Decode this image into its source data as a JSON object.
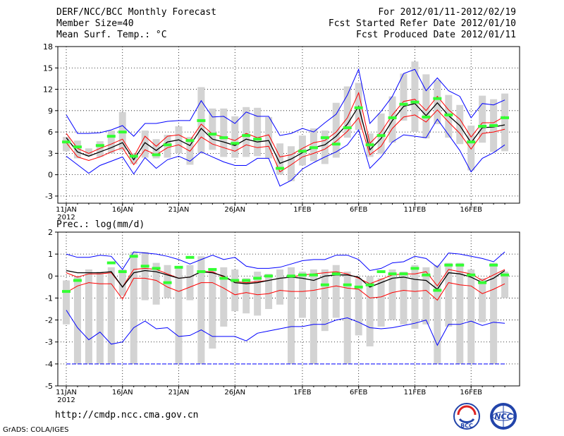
{
  "header": {
    "title": "DERF/NCC/BCC Monthly Forecast",
    "member_size": "Member Size=40",
    "variable": "Mean Surf. Temp.: °C",
    "forecast_period": "For 2012/01/11-2012/02/19",
    "fcst_started": "Fcst Started Refer Date 2012/01/10",
    "fcst_produced": "Fcst Produced Date 2012/01/11"
  },
  "footer": {
    "url": "http://cmdp.ncc.cma.gov.cn",
    "credit": "GrADS: COLA/IGES",
    "logo_left": "BCC",
    "logo_right": "NCC"
  },
  "colors": {
    "envelope": "#0000ff",
    "spread": "#ff0000",
    "mean": "#000000",
    "box": "#d3d3d3",
    "obs": "#33ff33"
  },
  "chart_data": [
    {
      "type": "line",
      "title": "Mean Surf. Temp.: °C",
      "xlabel": "",
      "ylabel": "",
      "ylim": [
        -4,
        18
      ],
      "yticks": [
        -3,
        0,
        3,
        6,
        9,
        12,
        15,
        18
      ],
      "grid": true,
      "x_ticks": [
        {
          "day": 0,
          "label": "11JAN",
          "sub": "2012"
        },
        {
          "day": 5,
          "label": "16JAN"
        },
        {
          "day": 10,
          "label": "21JAN"
        },
        {
          "day": 15,
          "label": "26JAN"
        },
        {
          "day": 21,
          "label": "1FEB"
        },
        {
          "day": 26,
          "label": "6FEB"
        },
        {
          "day": 31,
          "label": "11FEB"
        },
        {
          "day": 36,
          "label": "16FEB"
        }
      ],
      "days": 40,
      "series": [
        {
          "name": "max",
          "values": [
            8.4,
            5.8,
            5.8,
            5.9,
            6.3,
            6.9,
            5.4,
            7.2,
            7.2,
            7.5,
            7.6,
            7.6,
            10.4,
            8.1,
            8.2,
            7.2,
            8.8,
            8.2,
            8.2,
            5.5,
            5.8,
            6.5,
            6.0,
            7.3,
            8.5,
            11.2,
            14.8,
            7.2,
            8.9,
            11.0,
            14.2,
            14.8,
            11.8,
            13.6,
            11.8,
            11.0,
            8.0,
            10.0,
            9.8,
            10.5
          ]
        },
        {
          "name": "upper",
          "values": [
            5.8,
            3.7,
            3.0,
            3.7,
            4.3,
            5.0,
            2.5,
            5.4,
            4.0,
            5.4,
            5.6,
            4.8,
            7.1,
            5.7,
            5.3,
            4.8,
            5.8,
            5.2,
            5.6,
            2.5,
            2.8,
            3.7,
            4.5,
            4.8,
            6.0,
            8.0,
            11.5,
            4.4,
            6.0,
            8.4,
            10.3,
            10.6,
            9.0,
            11.0,
            9.1,
            7.8,
            5.3,
            7.3,
            7.3,
            8.2
          ]
        },
        {
          "name": "mean",
          "values": [
            5.2,
            3.2,
            2.6,
            3.2,
            3.8,
            4.5,
            2.1,
            4.5,
            3.4,
            4.6,
            4.9,
            4.1,
            6.5,
            5.0,
            4.6,
            4.1,
            5.0,
            4.6,
            4.8,
            1.6,
            2.2,
            3.1,
            3.8,
            4.2,
            5.4,
            7.1,
            9.6,
            3.5,
            5.1,
            7.6,
            9.6,
            10.0,
            8.3,
            10.1,
            8.3,
            6.9,
            4.5,
            6.6,
            6.7,
            7.0
          ]
        },
        {
          "name": "lower",
          "values": [
            4.5,
            2.5,
            2.0,
            2.5,
            3.2,
            3.8,
            1.4,
            3.5,
            2.8,
            3.8,
            4.2,
            3.3,
            5.3,
            4.3,
            3.8,
            3.3,
            4.2,
            3.8,
            4.0,
            0.4,
            1.4,
            2.5,
            3.0,
            3.6,
            4.7,
            6.1,
            8.0,
            2.8,
            4.0,
            6.5,
            8.1,
            8.4,
            7.4,
            9.1,
            7.4,
            5.8,
            3.6,
            5.8,
            6.0,
            6.4
          ]
        },
        {
          "name": "min",
          "values": [
            2.6,
            1.4,
            0.2,
            1.3,
            1.9,
            2.5,
            0.1,
            2.4,
            0.9,
            2.1,
            2.6,
            1.9,
            3.2,
            2.5,
            1.8,
            1.3,
            1.3,
            2.3,
            2.3,
            -1.6,
            -0.8,
            0.8,
            1.7,
            2.5,
            3.2,
            4.2,
            6.3,
            0.9,
            2.5,
            4.6,
            5.6,
            5.4,
            5.2,
            7.8,
            5.6,
            3.4,
            0.4,
            2.3,
            3.1,
            4.2
          ]
        }
      ],
      "boxes": [
        [
          3.3,
          5.3
        ],
        [
          2.3,
          4.8
        ],
        [
          2.6,
          3.7
        ],
        [
          2.5,
          4.7
        ],
        [
          3.0,
          6.2
        ],
        [
          3.4,
          8.8
        ],
        [
          1.5,
          3.0
        ],
        [
          2.4,
          6.2
        ],
        [
          2.3,
          5.0
        ],
        [
          2.4,
          5.6
        ],
        [
          3.0,
          6.8
        ],
        [
          1.4,
          5.3
        ],
        [
          3.0,
          12.3
        ],
        [
          3.5,
          9.3
        ],
        [
          2.5,
          9.3
        ],
        [
          2.4,
          8.2
        ],
        [
          2.5,
          9.5
        ],
        [
          2.6,
          9.4
        ],
        [
          2.3,
          8.1
        ],
        [
          0.0,
          4.4
        ],
        [
          -0.9,
          4.0
        ],
        [
          1.3,
          5.5
        ],
        [
          1.9,
          6.5
        ],
        [
          1.5,
          6.2
        ],
        [
          2.4,
          10.1
        ],
        [
          5.2,
          12.4
        ],
        [
          6.3,
          12.9
        ],
        [
          2.5,
          5.8
        ],
        [
          2.9,
          8.6
        ],
        [
          4.5,
          11.0
        ],
        [
          7.6,
          14.2
        ],
        [
          6.0,
          15.9
        ],
        [
          5.1,
          14.1
        ],
        [
          7.1,
          13.3
        ],
        [
          5.2,
          11.2
        ],
        [
          4.3,
          9.8
        ],
        [
          0.6,
          6.9
        ],
        [
          4.5,
          11.1
        ],
        [
          3.2,
          10.6
        ],
        [
          3.3,
          11.4
        ]
      ],
      "observed": [
        4.6,
        3.9,
        null,
        4.1,
        5.4,
        6.0,
        2.6,
        null,
        2.8,
        4.2,
        null,
        4.8,
        7.6,
        5.7,
        5.2,
        4.4,
        5.5,
        5.0,
        null,
        0.9,
        null,
        3.3,
        3.8,
        5.2,
        4.3,
        6.6,
        9.4,
        4.2,
        5.5,
        8.0,
        9.9,
        10.2,
        8.1,
        10.7,
        8.4,
        null,
        4.6,
        6.8,
        6.9,
        8.0
      ]
    },
    {
      "type": "line",
      "title": "Prec.: log(mm/d)",
      "xlabel": "",
      "ylabel": "",
      "ylim": [
        -5,
        2
      ],
      "yticks": [
        -5,
        -4,
        -3,
        -2,
        -1,
        0,
        1,
        2
      ],
      "grid": true,
      "x_ticks": [
        {
          "day": 0,
          "label": "11JAN",
          "sub": "2012"
        },
        {
          "day": 5,
          "label": "16JAN"
        },
        {
          "day": 10,
          "label": "21JAN"
        },
        {
          "day": 15,
          "label": "26JAN"
        },
        {
          "day": 21,
          "label": "1FEB"
        },
        {
          "day": 26,
          "label": "6FEB"
        },
        {
          "day": 31,
          "label": "11FEB"
        },
        {
          "day": 36,
          "label": "16FEB"
        }
      ],
      "days": 40,
      "series": [
        {
          "name": "max",
          "values": [
            1.0,
            0.85,
            0.85,
            0.95,
            0.9,
            0.3,
            1.1,
            1.05,
            1.0,
            0.9,
            0.75,
            0.55,
            0.75,
            0.95,
            0.75,
            0.85,
            0.45,
            0.35,
            0.35,
            0.4,
            0.55,
            0.7,
            0.75,
            0.75,
            0.95,
            0.95,
            0.75,
            0.25,
            0.35,
            0.6,
            0.65,
            0.9,
            0.8,
            0.4,
            1.05,
            1.0,
            0.9,
            0.8,
            0.65,
            1.1
          ]
        },
        {
          "name": "upper",
          "values": [
            0.15,
            -0.05,
            0.1,
            0.1,
            0.15,
            -0.5,
            0.3,
            0.35,
            0.3,
            0.1,
            -0.1,
            -0.05,
            0.2,
            0.2,
            -0.05,
            -0.25,
            -0.3,
            -0.25,
            -0.2,
            -0.1,
            -0.05,
            0.05,
            0.1,
            0.15,
            0.2,
            0.1,
            -0.1,
            -0.35,
            -0.15,
            0.05,
            0.1,
            0.1,
            0.2,
            -0.45,
            0.3,
            0.2,
            0.1,
            -0.2,
            0.05,
            0.3
          ]
        },
        {
          "name": "mean",
          "values": [
            0.25,
            0.15,
            0.15,
            0.15,
            0.2,
            -0.5,
            0.15,
            0.25,
            0.2,
            0.05,
            -0.1,
            -0.05,
            0.2,
            0.15,
            0.0,
            -0.3,
            -0.35,
            -0.3,
            -0.2,
            -0.1,
            -0.05,
            -0.1,
            -0.2,
            0.0,
            0.05,
            0.05,
            -0.05,
            -0.5,
            -0.3,
            -0.1,
            -0.05,
            -0.15,
            -0.2,
            -0.6,
            0.15,
            0.1,
            -0.05,
            -0.3,
            -0.1,
            0.25
          ]
        },
        {
          "name": "lower",
          "values": [
            -0.75,
            -0.45,
            -0.3,
            -0.35,
            -0.35,
            -1.05,
            -0.1,
            -0.1,
            -0.2,
            -0.5,
            -0.7,
            -0.5,
            -0.3,
            -0.3,
            -0.55,
            -0.85,
            -0.75,
            -0.85,
            -0.8,
            -0.65,
            -0.7,
            -0.7,
            -0.65,
            -0.55,
            -0.45,
            -0.55,
            -0.6,
            -1.0,
            -0.95,
            -0.75,
            -0.65,
            -0.7,
            -0.65,
            -1.1,
            -0.3,
            -0.4,
            -0.45,
            -0.8,
            -0.6,
            -0.35
          ]
        },
        {
          "name": "min",
          "values": [
            -1.55,
            -2.35,
            -2.9,
            -2.55,
            -3.1,
            -3.0,
            -2.35,
            -2.05,
            -2.4,
            -2.35,
            -2.75,
            -2.7,
            -2.45,
            -2.75,
            -2.75,
            -2.75,
            -2.95,
            -2.6,
            -2.5,
            -2.4,
            -2.3,
            -2.3,
            -2.2,
            -2.2,
            -2.0,
            -1.9,
            -2.1,
            -2.35,
            -2.4,
            -2.35,
            -2.25,
            -2.15,
            -2.0,
            -3.15,
            -2.2,
            -2.2,
            -2.05,
            -2.25,
            -2.1,
            -2.15
          ]
        },
        {
          "name": "floor",
          "values": [
            -4,
            -4,
            -4,
            -4,
            -4,
            -4,
            -4,
            -4,
            -4,
            -4,
            -4,
            -4,
            -4,
            -4,
            -4,
            -4,
            -4,
            -4,
            -4,
            -4,
            -4,
            -4,
            -4,
            -4,
            -4,
            -4,
            -4,
            -4,
            -4,
            -4,
            -4,
            -4,
            -4,
            -4,
            -4,
            -4,
            -4,
            -4,
            -4,
            -4
          ]
        }
      ],
      "boxes": [
        [
          -2.2,
          -0.2
        ],
        [
          -4.0,
          0.0
        ],
        [
          -4.0,
          0.3
        ],
        [
          -4.0,
          0.2
        ],
        [
          -4.0,
          0.4
        ],
        [
          -0.9,
          0.3
        ],
        [
          -4.0,
          1.1
        ],
        [
          -1.1,
          1.1
        ],
        [
          -1.3,
          0.6
        ],
        [
          -1.0,
          0.5
        ],
        [
          -4.0,
          0.4
        ],
        [
          -1.1,
          0.5
        ],
        [
          -4.0,
          0.9
        ],
        [
          -3.3,
          0.3
        ],
        [
          -2.3,
          0.4
        ],
        [
          -1.6,
          0.3
        ],
        [
          -1.7,
          -0.1
        ],
        [
          -1.8,
          0.2
        ],
        [
          -1.5,
          0.1
        ],
        [
          -1.3,
          0.3
        ],
        [
          -4.0,
          0.4
        ],
        [
          -1.9,
          0.2
        ],
        [
          -4.0,
          0.3
        ],
        [
          -2.5,
          0.3
        ],
        [
          -1.9,
          0.5
        ],
        [
          -4.0,
          0.2
        ],
        [
          -2.7,
          -0.1
        ],
        [
          -3.2,
          0.0
        ],
        [
          -2.3,
          -0.1
        ],
        [
          -2.0,
          0.3
        ],
        [
          -2.2,
          0.2
        ],
        [
          -2.4,
          0.5
        ],
        [
          -2.2,
          0.4
        ],
        [
          -4.0,
          0.5
        ],
        [
          -2.3,
          0.6
        ],
        [
          -4.0,
          0.6
        ],
        [
          -4.0,
          0.3
        ],
        [
          -2.1,
          -0.1
        ],
        [
          -4.0,
          0.6
        ],
        [
          -1.0,
          0.2
        ]
      ],
      "observed": [
        -0.7,
        -0.2,
        null,
        null,
        0.6,
        0.2,
        0.9,
        0.45,
        0.35,
        -0.3,
        0.4,
        0.85,
        0.2,
        0.3,
        -0.1,
        -0.2,
        -0.2,
        -0.1,
        0.0,
        null,
        0.0,
        0.05,
        0.05,
        -0.4,
        0.1,
        -0.4,
        -0.5,
        -0.4,
        0.2,
        0.1,
        0.1,
        0.35,
        0.05,
        -0.65,
        0.5,
        0.5,
        0.05,
        -0.3,
        0.5,
        0.05
      ]
    }
  ]
}
